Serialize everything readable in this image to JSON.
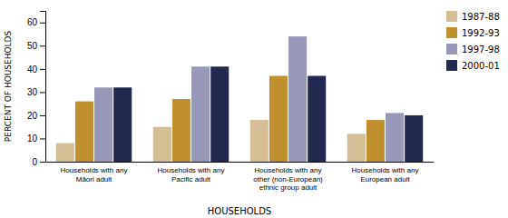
{
  "chart_data": {
    "type": "bar",
    "categories": [
      "Households with any\nMāori adult",
      "Households with any\nPacific adult",
      "Households with any\nother (non-European)\nethnic group adult",
      "Households with any\nEuropean adult"
    ],
    "series": [
      {
        "name": "1987-88",
        "color": "#d4be96",
        "values": [
          8,
          15,
          18,
          12
        ]
      },
      {
        "name": "1992-93",
        "color": "#c09030",
        "values": [
          26,
          27,
          37,
          18
        ]
      },
      {
        "name": "1997-98",
        "color": "#9898b8",
        "values": [
          32,
          41,
          54,
          21
        ]
      },
      {
        "name": "2000-01",
        "color": "#222850",
        "values": [
          32,
          41,
          37,
          20
        ]
      }
    ],
    "ylabel": "PERCENT OF HOUSEHOLDS",
    "xlabel": "HOUSEHOLDS",
    "ylim": [
      0,
      65
    ],
    "yticks": [
      0,
      10,
      20,
      30,
      40,
      50,
      60
    ],
    "grid": false,
    "legend": "right"
  }
}
